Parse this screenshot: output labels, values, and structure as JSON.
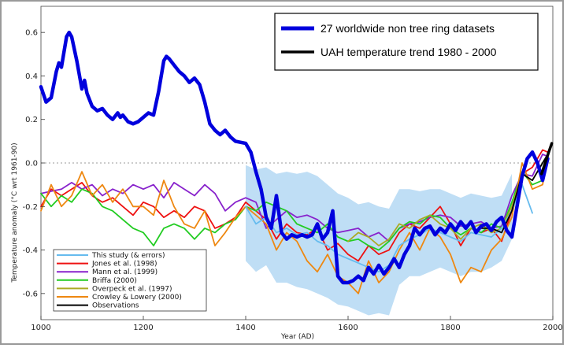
{
  "chart_data": {
    "type": "line",
    "xlabel": "Year (AD)",
    "ylabel": "Temperature anomaly (°C wrt 1961-90)",
    "xlim": [
      1000,
      2000
    ],
    "ylim": [
      -0.72,
      0.72
    ],
    "x_ticks": [
      "1000",
      "1200",
      "1400",
      "1600",
      "1800",
      "2000"
    ],
    "y_ticks": [
      "0.6",
      "0.4",
      "0.2",
      "0.0",
      "-0.2",
      "-0.4",
      "-0.6"
    ],
    "zero_line": true,
    "top_legend": {
      "position": "top-right",
      "entries": [
        {
          "label": "27 worldwide non tree ring datasets",
          "color": "#0000dd"
        },
        {
          "label": "UAH temperature trend 1980 - 2000",
          "color": "#000000"
        }
      ]
    },
    "inner_legend": {
      "position": "bottom-left",
      "entries": [
        {
          "label": "This study (& errors)",
          "color": "#66bbee"
        },
        {
          "label": "Jones et al. (1998)",
          "color": "#ee1111"
        },
        {
          "label": "Mann et al. (1999)",
          "color": "#8822cc"
        },
        {
          "label": "Briffa (2000)",
          "color": "#22cc22"
        },
        {
          "label": "Overpeck et al. (1997)",
          "color": "#aaaa22"
        },
        {
          "label": "Crowley & Lowery (2000)",
          "color": "#ee8811"
        },
        {
          "label": "Observations",
          "color": "#000000"
        }
      ]
    },
    "error_band": {
      "color": "#a9d3f2",
      "x": [
        1400,
        1420,
        1440,
        1460,
        1480,
        1500,
        1520,
        1540,
        1560,
        1580,
        1600,
        1620,
        1640,
        1660,
        1680,
        1700,
        1720,
        1740,
        1760,
        1780,
        1800,
        1820,
        1840,
        1860,
        1880,
        1900,
        1920
      ],
      "upper": [
        -0.01,
        -0.03,
        -0.02,
        -0.05,
        -0.04,
        -0.05,
        -0.04,
        -0.06,
        -0.1,
        -0.14,
        -0.16,
        -0.19,
        -0.18,
        -0.2,
        -0.21,
        -0.12,
        -0.12,
        -0.13,
        -0.12,
        -0.12,
        -0.14,
        -0.16,
        -0.14,
        -0.15,
        -0.16,
        -0.15,
        -0.05
      ],
      "lower": [
        -0.45,
        -0.5,
        -0.47,
        -0.55,
        -0.55,
        -0.57,
        -0.58,
        -0.6,
        -0.62,
        -0.65,
        -0.66,
        -0.68,
        -0.7,
        -0.69,
        -0.7,
        -0.56,
        -0.52,
        -0.52,
        -0.5,
        -0.48,
        -0.5,
        -0.52,
        -0.5,
        -0.5,
        -0.48,
        -0.45,
        -0.35
      ]
    },
    "series": [
      {
        "name": "27 worldwide non tree ring datasets",
        "color": "#0000dd",
        "width": 4.5,
        "x": [
          1000,
          1010,
          1020,
          1030,
          1035,
          1040,
          1050,
          1055,
          1060,
          1070,
          1080,
          1085,
          1090,
          1100,
          1110,
          1120,
          1130,
          1140,
          1150,
          1155,
          1160,
          1170,
          1180,
          1190,
          1200,
          1210,
          1220,
          1230,
          1240,
          1245,
          1250,
          1260,
          1270,
          1280,
          1290,
          1300,
          1310,
          1320,
          1330,
          1340,
          1350,
          1360,
          1370,
          1380,
          1400,
          1410,
          1420,
          1430,
          1440,
          1450,
          1460,
          1470,
          1480,
          1490,
          1500,
          1510,
          1520,
          1530,
          1540,
          1550,
          1560,
          1570,
          1580,
          1590,
          1600,
          1610,
          1620,
          1630,
          1640,
          1650,
          1660,
          1670,
          1680,
          1690,
          1700,
          1710,
          1720,
          1730,
          1740,
          1750,
          1760,
          1770,
          1780,
          1790,
          1800,
          1810,
          1820,
          1830,
          1840,
          1850,
          1860,
          1870,
          1880,
          1890,
          1900,
          1910,
          1920,
          1930,
          1940,
          1950,
          1960,
          1970,
          1980,
          1990
        ],
        "y": [
          0.35,
          0.28,
          0.3,
          0.42,
          0.46,
          0.44,
          0.58,
          0.6,
          0.58,
          0.47,
          0.34,
          0.38,
          0.32,
          0.26,
          0.24,
          0.25,
          0.22,
          0.2,
          0.23,
          0.21,
          0.22,
          0.19,
          0.18,
          0.19,
          0.21,
          0.23,
          0.22,
          0.33,
          0.47,
          0.49,
          0.48,
          0.45,
          0.42,
          0.4,
          0.37,
          0.39,
          0.36,
          0.28,
          0.18,
          0.15,
          0.13,
          0.15,
          0.12,
          0.1,
          0.09,
          0.05,
          -0.04,
          -0.12,
          -0.25,
          -0.3,
          -0.15,
          -0.32,
          -0.35,
          -0.33,
          -0.34,
          -0.33,
          -0.34,
          -0.33,
          -0.28,
          -0.35,
          -0.32,
          -0.22,
          -0.52,
          -0.55,
          -0.55,
          -0.54,
          -0.52,
          -0.54,
          -0.48,
          -0.51,
          -0.47,
          -0.51,
          -0.48,
          -0.44,
          -0.48,
          -0.42,
          -0.38,
          -0.3,
          -0.33,
          -0.3,
          -0.29,
          -0.33,
          -0.3,
          -0.32,
          -0.28,
          -0.31,
          -0.27,
          -0.3,
          -0.27,
          -0.32,
          -0.29,
          -0.28,
          -0.31,
          -0.27,
          -0.25,
          -0.31,
          -0.34,
          -0.2,
          -0.06,
          0.02,
          0.05,
          0.0,
          -0.08,
          0.02
        ]
      },
      {
        "name": "Jones et al. (1998)",
        "color": "#ee1111",
        "width": 1.8,
        "x": [
          1000,
          1020,
          1040,
          1060,
          1080,
          1100,
          1120,
          1140,
          1160,
          1180,
          1200,
          1220,
          1240,
          1260,
          1280,
          1300,
          1320,
          1340,
          1360,
          1380,
          1400,
          1420,
          1440,
          1460,
          1480,
          1500,
          1520,
          1540,
          1560,
          1580,
          1600,
          1620,
          1640,
          1660,
          1680,
          1700,
          1720,
          1740,
          1760,
          1780,
          1800,
          1820,
          1840,
          1860,
          1880,
          1900,
          1920,
          1940,
          1960,
          1980,
          1990
        ],
        "y": [
          -0.2,
          -0.12,
          -0.15,
          -0.12,
          -0.09,
          -0.15,
          -0.18,
          -0.16,
          -0.2,
          -0.24,
          -0.18,
          -0.2,
          -0.25,
          -0.22,
          -0.25,
          -0.2,
          -0.22,
          -0.3,
          -0.28,
          -0.25,
          -0.18,
          -0.22,
          -0.26,
          -0.35,
          -0.28,
          -0.32,
          -0.33,
          -0.3,
          -0.4,
          -0.37,
          -0.42,
          -0.45,
          -0.38,
          -0.42,
          -0.4,
          -0.32,
          -0.28,
          -0.3,
          -0.25,
          -0.2,
          -0.28,
          -0.38,
          -0.3,
          -0.32,
          -0.3,
          -0.36,
          -0.22,
          -0.05,
          -0.02,
          0.06,
          0.05
        ]
      },
      {
        "name": "Mann et al. (1999)",
        "color": "#8822cc",
        "width": 1.8,
        "x": [
          1000,
          1020,
          1040,
          1060,
          1080,
          1100,
          1120,
          1140,
          1160,
          1180,
          1200,
          1220,
          1240,
          1260,
          1280,
          1300,
          1320,
          1340,
          1360,
          1380,
          1400,
          1420,
          1440,
          1460,
          1480,
          1500,
          1520,
          1540,
          1560,
          1580,
          1600,
          1620,
          1640,
          1660,
          1680,
          1700,
          1720,
          1740,
          1760,
          1780,
          1800,
          1820,
          1840,
          1860,
          1880,
          1900,
          1920,
          1940,
          1960,
          1980,
          1990
        ],
        "y": [
          -0.14,
          -0.13,
          -0.12,
          -0.09,
          -0.12,
          -0.1,
          -0.15,
          -0.12,
          -0.14,
          -0.1,
          -0.12,
          -0.1,
          -0.16,
          -0.09,
          -0.12,
          -0.15,
          -0.1,
          -0.14,
          -0.22,
          -0.18,
          -0.16,
          -0.18,
          -0.3,
          -0.26,
          -0.22,
          -0.25,
          -0.24,
          -0.26,
          -0.3,
          -0.32,
          -0.31,
          -0.3,
          -0.34,
          -0.32,
          -0.36,
          -0.3,
          -0.28,
          -0.27,
          -0.25,
          -0.24,
          -0.25,
          -0.29,
          -0.28,
          -0.27,
          -0.3,
          -0.29,
          -0.15,
          -0.05,
          -0.06,
          0.04,
          0.03
        ]
      },
      {
        "name": "Briffa (2000)",
        "color": "#22cc22",
        "width": 1.8,
        "x": [
          1000,
          1020,
          1040,
          1060,
          1080,
          1100,
          1120,
          1140,
          1160,
          1180,
          1200,
          1220,
          1240,
          1260,
          1280,
          1300,
          1320,
          1340,
          1360,
          1380,
          1400,
          1420,
          1440,
          1460,
          1480,
          1500,
          1520,
          1540,
          1560,
          1580,
          1600,
          1620,
          1640,
          1660,
          1680,
          1700,
          1720,
          1740,
          1760,
          1780,
          1800,
          1820,
          1840,
          1860,
          1880,
          1900,
          1920,
          1940,
          1960,
          1980
        ],
        "y": [
          -0.14,
          -0.2,
          -0.15,
          -0.18,
          -0.12,
          -0.14,
          -0.2,
          -0.22,
          -0.26,
          -0.3,
          -0.32,
          -0.38,
          -0.3,
          -0.28,
          -0.3,
          -0.35,
          -0.3,
          -0.32,
          -0.28,
          -0.26,
          -0.2,
          -0.22,
          -0.18,
          -0.2,
          -0.22,
          -0.28,
          -0.3,
          -0.32,
          -0.28,
          -0.34,
          -0.36,
          -0.35,
          -0.38,
          -0.4,
          -0.36,
          -0.3,
          -0.27,
          -0.28,
          -0.24,
          -0.25,
          -0.3,
          -0.33,
          -0.3,
          -0.32,
          -0.28,
          -0.3,
          -0.18,
          -0.04,
          -0.1,
          -0.08
        ]
      },
      {
        "name": "Overpeck et al. (1997)",
        "color": "#aaaa22",
        "width": 1.8,
        "x": [
          1600,
          1620,
          1640,
          1660,
          1680,
          1700,
          1720,
          1740,
          1760,
          1780,
          1800,
          1820,
          1840,
          1860,
          1880,
          1900,
          1920,
          1940,
          1960,
          1980
        ],
        "y": [
          -0.36,
          -0.32,
          -0.34,
          -0.38,
          -0.35,
          -0.28,
          -0.3,
          -0.26,
          -0.24,
          -0.28,
          -0.3,
          -0.35,
          -0.3,
          -0.28,
          -0.32,
          -0.3,
          -0.2,
          -0.05,
          -0.08,
          0.0
        ]
      },
      {
        "name": "Crowley & Lowery (2000)",
        "color": "#ee8811",
        "width": 1.8,
        "x": [
          1000,
          1020,
          1040,
          1060,
          1080,
          1100,
          1120,
          1140,
          1160,
          1180,
          1200,
          1220,
          1240,
          1260,
          1280,
          1300,
          1320,
          1340,
          1360,
          1380,
          1400,
          1420,
          1440,
          1460,
          1480,
          1500,
          1520,
          1540,
          1560,
          1580,
          1600,
          1620,
          1640,
          1660,
          1680,
          1700,
          1720,
          1740,
          1760,
          1780,
          1800,
          1820,
          1840,
          1860,
          1880,
          1900,
          1920,
          1940,
          1960,
          1980,
          1990
        ],
        "y": [
          -0.22,
          -0.1,
          -0.2,
          -0.15,
          -0.04,
          -0.15,
          -0.1,
          -0.18,
          -0.12,
          -0.2,
          -0.2,
          -0.24,
          -0.08,
          -0.2,
          -0.28,
          -0.3,
          -0.22,
          -0.38,
          -0.32,
          -0.25,
          -0.2,
          -0.24,
          -0.28,
          -0.4,
          -0.32,
          -0.36,
          -0.45,
          -0.5,
          -0.42,
          -0.52,
          -0.55,
          -0.6,
          -0.45,
          -0.55,
          -0.5,
          -0.4,
          -0.32,
          -0.4,
          -0.3,
          -0.34,
          -0.42,
          -0.55,
          -0.48,
          -0.5,
          -0.4,
          -0.35,
          -0.25,
          0.0,
          -0.12,
          -0.1,
          0.02
        ]
      },
      {
        "name": "This study (& errors)",
        "color": "#66bbee",
        "width": 1.8,
        "x": [
          1400,
          1420,
          1440,
          1460,
          1480,
          1500,
          1520,
          1540,
          1560,
          1580,
          1600,
          1620,
          1640,
          1660,
          1680,
          1700,
          1720,
          1740,
          1760,
          1780,
          1800,
          1820,
          1840,
          1860,
          1880,
          1900,
          1920,
          1940,
          1960
        ],
        "y": [
          -0.2,
          -0.28,
          -0.25,
          -0.32,
          -0.3,
          -0.33,
          -0.32,
          -0.36,
          -0.38,
          -0.42,
          -0.44,
          -0.46,
          -0.48,
          -0.5,
          -0.47,
          -0.38,
          -0.35,
          -0.33,
          -0.3,
          -0.32,
          -0.34,
          -0.36,
          -0.32,
          -0.33,
          -0.34,
          -0.3,
          -0.22,
          -0.1,
          -0.23
        ]
      },
      {
        "name": "Observations",
        "color": "#000000",
        "width": 1.8,
        "x": [
          1860,
          1880,
          1900,
          1920,
          1940,
          1960,
          1980,
          1990
        ],
        "y": [
          -0.3,
          -0.3,
          -0.32,
          -0.22,
          -0.05,
          -0.08,
          0.0,
          0.04
        ]
      },
      {
        "name": "UAH temperature trend 1980 - 2000",
        "color": "#000000",
        "width": 3.5,
        "x": [
          1978,
          1985,
          1992,
          1998
        ],
        "y": [
          -0.05,
          0.0,
          0.05,
          0.09
        ]
      }
    ]
  }
}
